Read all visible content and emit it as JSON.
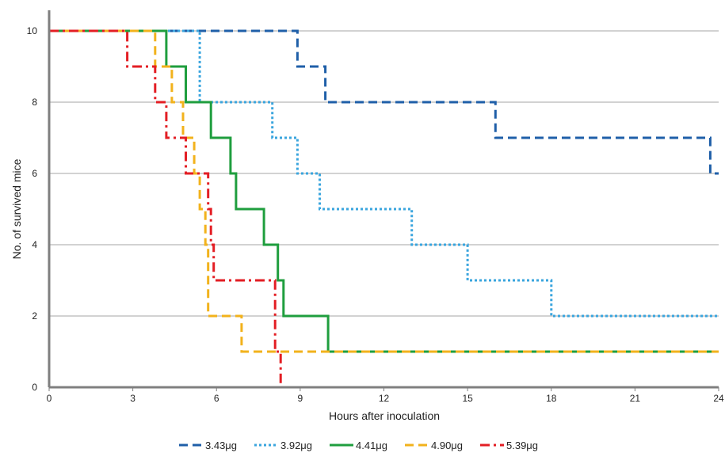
{
  "chart_data": {
    "type": "line",
    "step": true,
    "title": "",
    "xlabel": "Hours after inoculation",
    "ylabel": "No. of survived mice",
    "xlim": [
      0,
      24
    ],
    "ylim": [
      0,
      10
    ],
    "xticks": [
      0,
      3,
      6,
      9,
      12,
      15,
      18,
      21,
      24
    ],
    "yticks": [
      0,
      2,
      4,
      6,
      8,
      10
    ],
    "grid": "horizontal",
    "legend": "bottom",
    "series": [
      {
        "name": "3.43μg",
        "color": "#1f5fa8",
        "style": "dash",
        "points": [
          [
            0,
            10
          ],
          [
            8.9,
            10
          ],
          [
            8.9,
            9
          ],
          [
            9.9,
            9
          ],
          [
            9.9,
            8
          ],
          [
            16,
            8
          ],
          [
            16,
            7
          ],
          [
            23.7,
            7
          ],
          [
            23.7,
            6
          ],
          [
            24,
            6
          ]
        ]
      },
      {
        "name": "3.92μg",
        "color": "#3aa5de",
        "style": "dot",
        "points": [
          [
            0,
            10
          ],
          [
            5.4,
            10
          ],
          [
            5.4,
            8
          ],
          [
            8,
            8
          ],
          [
            8,
            7
          ],
          [
            8.9,
            7
          ],
          [
            8.9,
            6
          ],
          [
            9.7,
            6
          ],
          [
            9.7,
            5
          ],
          [
            13,
            5
          ],
          [
            13,
            4
          ],
          [
            15,
            4
          ],
          [
            15,
            3
          ],
          [
            18,
            3
          ],
          [
            18,
            2
          ],
          [
            24,
            2
          ]
        ]
      },
      {
        "name": "4.41μg",
        "color": "#1f9e3e",
        "style": "solid",
        "points": [
          [
            0,
            10
          ],
          [
            4.2,
            10
          ],
          [
            4.2,
            9
          ],
          [
            4.9,
            9
          ],
          [
            4.9,
            8
          ],
          [
            5.8,
            8
          ],
          [
            5.8,
            7
          ],
          [
            6.5,
            7
          ],
          [
            6.5,
            6
          ],
          [
            6.7,
            6
          ],
          [
            6.7,
            5
          ],
          [
            7.7,
            5
          ],
          [
            7.7,
            4
          ],
          [
            8.2,
            4
          ],
          [
            8.2,
            3
          ],
          [
            8.4,
            3
          ],
          [
            8.4,
            2
          ],
          [
            10,
            2
          ],
          [
            10,
            1
          ],
          [
            24,
            1
          ]
        ]
      },
      {
        "name": "4.90μg",
        "color": "#f2b21c",
        "style": "dash",
        "points": [
          [
            0,
            10
          ],
          [
            3.8,
            10
          ],
          [
            3.8,
            9
          ],
          [
            4.4,
            9
          ],
          [
            4.4,
            8
          ],
          [
            4.8,
            8
          ],
          [
            4.8,
            7
          ],
          [
            5.2,
            7
          ],
          [
            5.2,
            6
          ],
          [
            5.4,
            6
          ],
          [
            5.4,
            5
          ],
          [
            5.6,
            5
          ],
          [
            5.6,
            4
          ],
          [
            5.7,
            4
          ],
          [
            5.7,
            2
          ],
          [
            6.9,
            2
          ],
          [
            6.9,
            1
          ],
          [
            24,
            1
          ]
        ]
      },
      {
        "name": "5.39μg",
        "color": "#e31e24",
        "style": "dashdot",
        "points": [
          [
            0,
            10
          ],
          [
            2.8,
            10
          ],
          [
            2.8,
            9
          ],
          [
            3.8,
            9
          ],
          [
            3.8,
            8
          ],
          [
            4.2,
            8
          ],
          [
            4.2,
            7
          ],
          [
            4.9,
            7
          ],
          [
            4.9,
            6
          ],
          [
            5.7,
            6
          ],
          [
            5.7,
            5
          ],
          [
            5.8,
            5
          ],
          [
            5.8,
            4
          ],
          [
            5.9,
            4
          ],
          [
            5.9,
            3
          ],
          [
            8.1,
            3
          ],
          [
            8.1,
            1
          ],
          [
            8.3,
            1
          ],
          [
            8.3,
            0
          ],
          [
            24,
            0
          ]
        ]
      }
    ]
  }
}
